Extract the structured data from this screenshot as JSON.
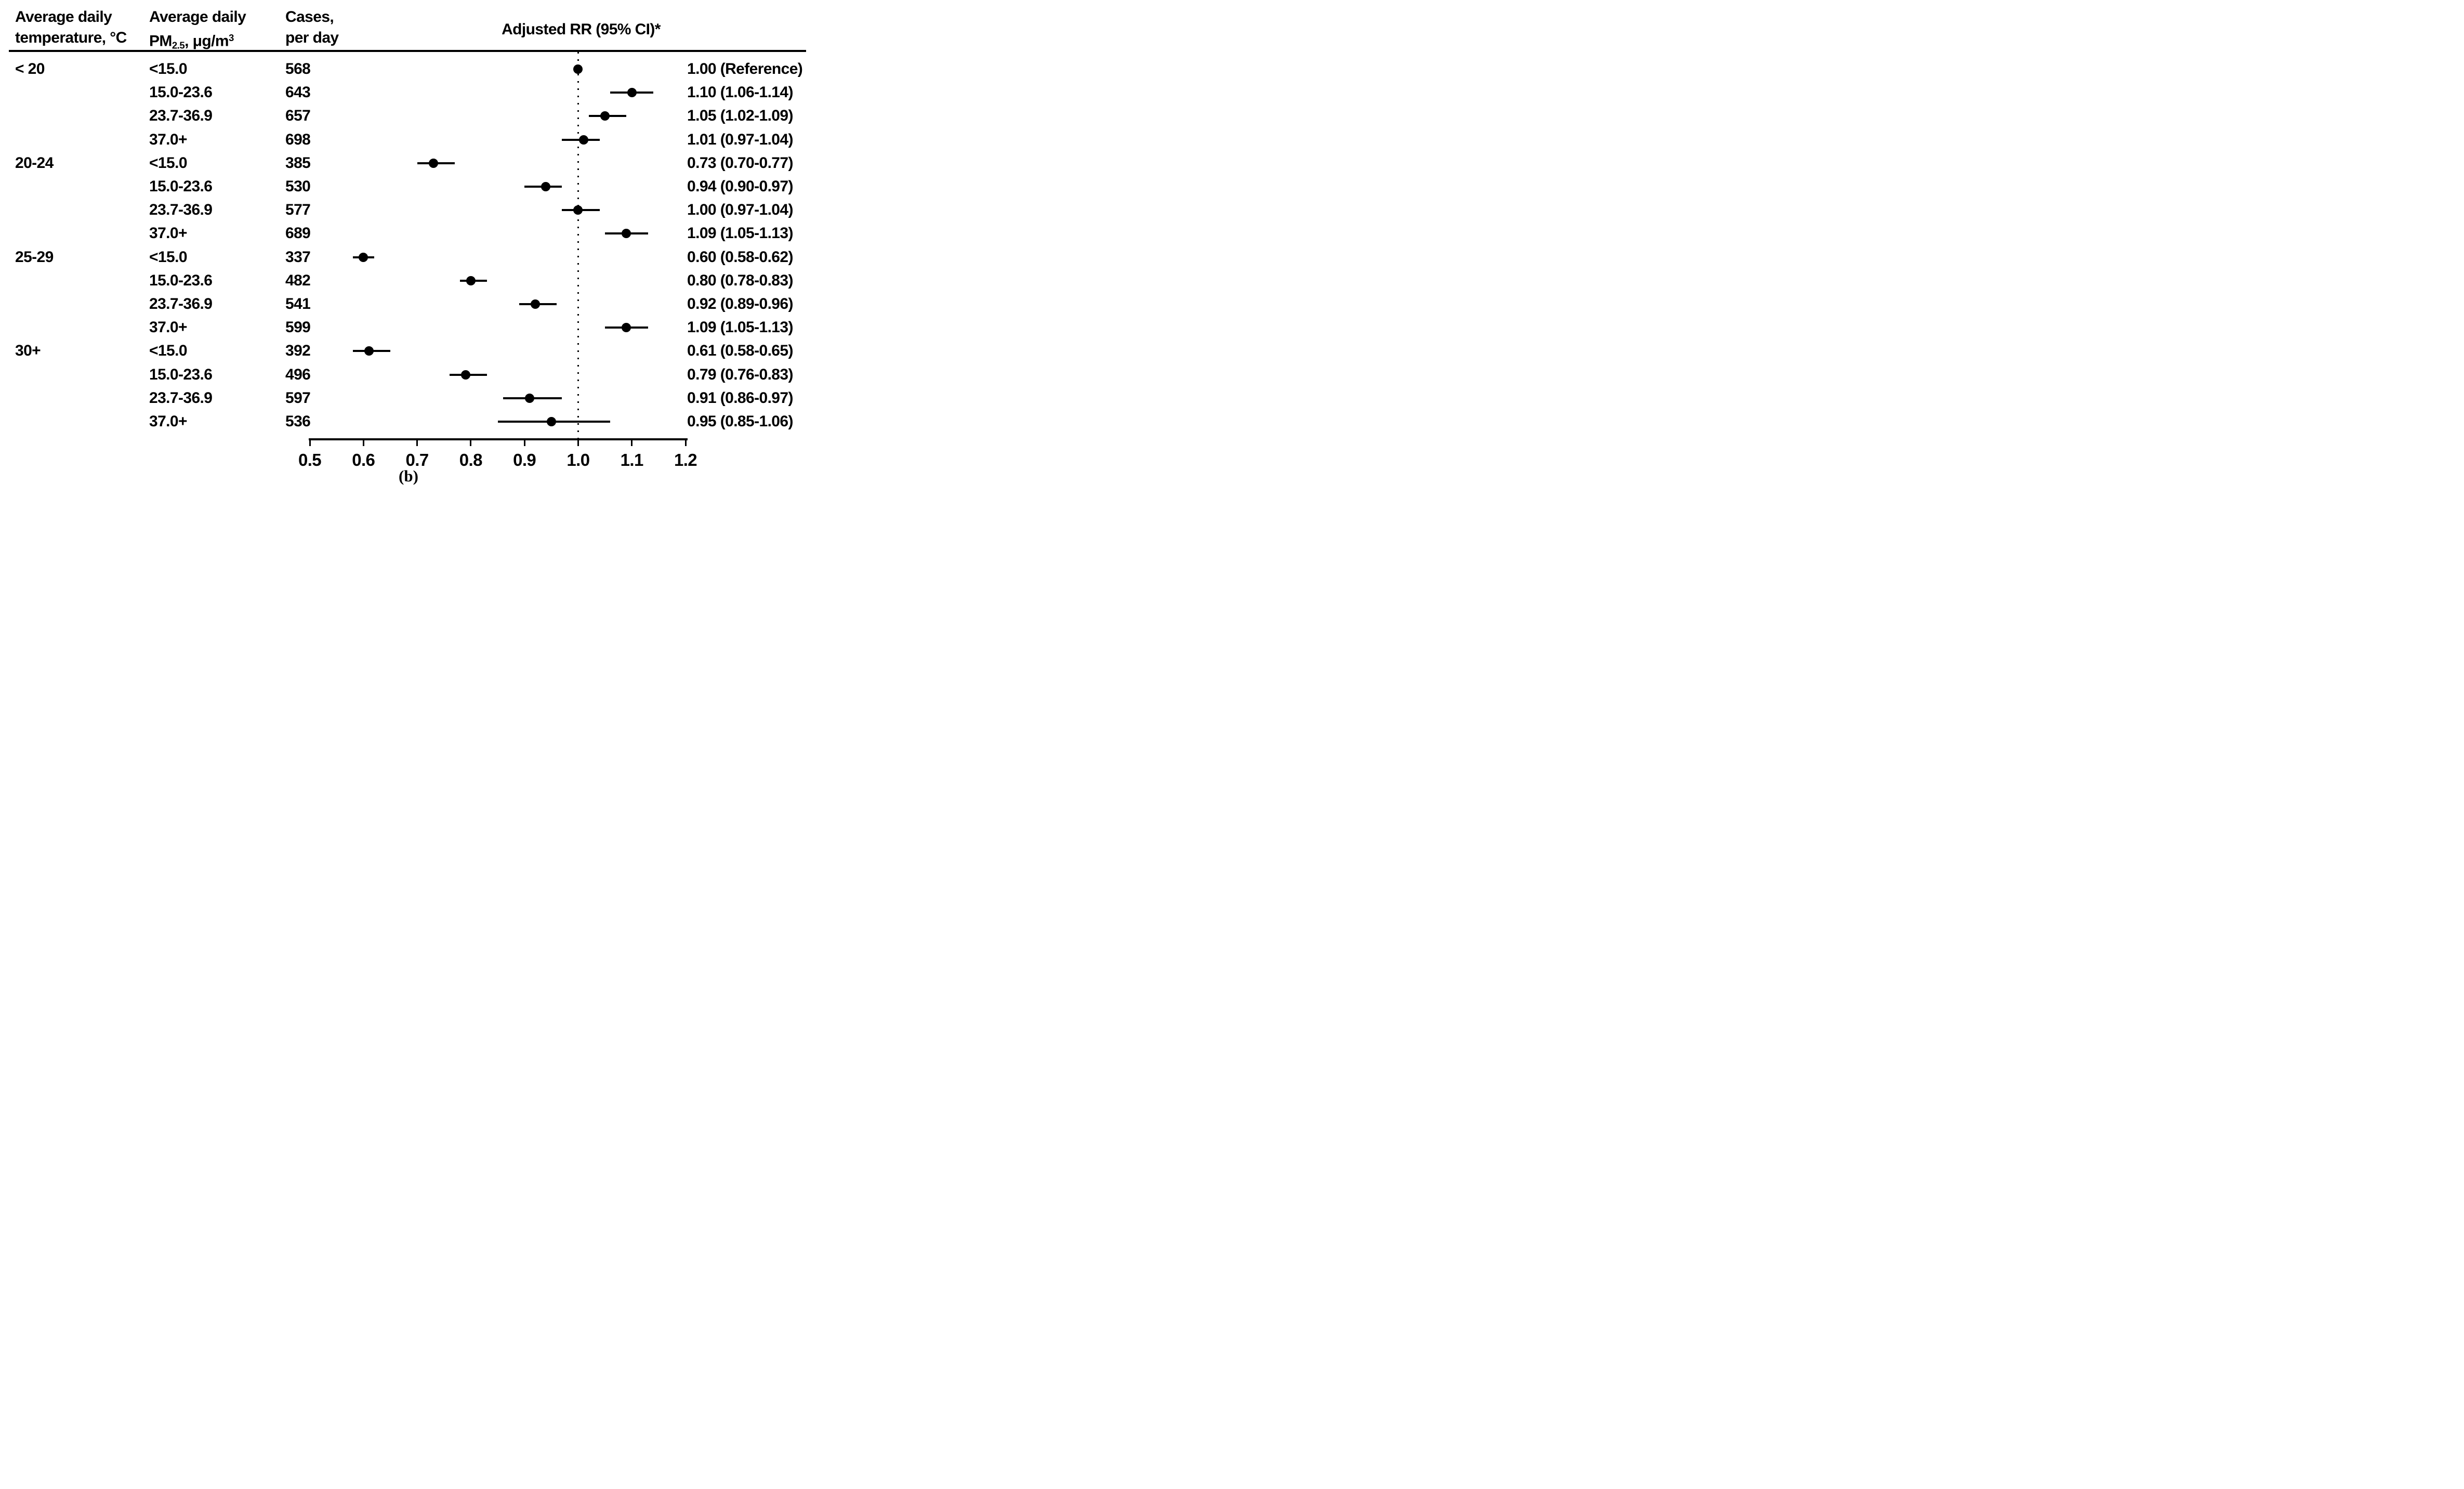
{
  "figure": {
    "header": {
      "col_temp": [
        "Average daily",
        "temperature, °C"
      ],
      "col_pm": {
        "line1": "Average daily",
        "pm": "PM",
        "pm_sub": "2.5",
        "pm_rest": ", μg/m",
        "pm_sup": "3"
      },
      "col_cases": [
        "Cases,",
        "per day"
      ],
      "col_rr": "Adjusted RR (95% CI)*"
    },
    "caption": "(b)",
    "colors": {
      "ink": "#000000",
      "background": "#ffffff"
    }
  },
  "chart_data": {
    "type": "scatter",
    "variant": "forest-plot",
    "title": "Adjusted RR (95% CI)*",
    "xlabel": "",
    "ylabel": "",
    "x_axis": {
      "range": [
        0.5,
        1.2
      ],
      "tick_values": [
        0.5,
        0.6,
        0.7,
        0.8,
        0.9,
        1.0,
        1.1,
        1.2
      ],
      "tick_labels": [
        "0.5",
        "0.6",
        "0.7",
        "0.8",
        "0.9",
        "1.0",
        "1.1",
        "1.2"
      ],
      "reference_line": 1.0,
      "grid": false
    },
    "legend": null,
    "rows": [
      {
        "temp": "< 20",
        "pm": "<15.0",
        "cases": "568",
        "rr": 1.0,
        "lo": null,
        "hi": null,
        "rr_label": "1.00 (Reference)"
      },
      {
        "temp": null,
        "pm": "15.0-23.6",
        "cases": "643",
        "rr": 1.1,
        "lo": 1.06,
        "hi": 1.14,
        "rr_label": "1.10 (1.06-1.14)"
      },
      {
        "temp": null,
        "pm": "23.7-36.9",
        "cases": "657",
        "rr": 1.05,
        "lo": 1.02,
        "hi": 1.09,
        "rr_label": "1.05 (1.02-1.09)"
      },
      {
        "temp": null,
        "pm": "37.0+",
        "cases": "698",
        "rr": 1.01,
        "lo": 0.97,
        "hi": 1.04,
        "rr_label": "1.01 (0.97-1.04)"
      },
      {
        "temp": "20-24",
        "pm": "<15.0",
        "cases": "385",
        "rr": 0.73,
        "lo": 0.7,
        "hi": 0.77,
        "rr_label": "0.73 (0.70-0.77)"
      },
      {
        "temp": null,
        "pm": "15.0-23.6",
        "cases": "530",
        "rr": 0.94,
        "lo": 0.9,
        "hi": 0.97,
        "rr_label": "0.94 (0.90-0.97)"
      },
      {
        "temp": null,
        "pm": "23.7-36.9",
        "cases": "577",
        "rr": 1.0,
        "lo": 0.97,
        "hi": 1.04,
        "rr_label": "1.00 (0.97-1.04)"
      },
      {
        "temp": null,
        "pm": "37.0+",
        "cases": "689",
        "rr": 1.09,
        "lo": 1.05,
        "hi": 1.13,
        "rr_label": "1.09 (1.05-1.13)"
      },
      {
        "temp": "25-29",
        "pm": "<15.0",
        "cases": "337",
        "rr": 0.6,
        "lo": 0.58,
        "hi": 0.62,
        "rr_label": "0.60 (0.58-0.62)"
      },
      {
        "temp": null,
        "pm": "15.0-23.6",
        "cases": "482",
        "rr": 0.8,
        "lo": 0.78,
        "hi": 0.83,
        "rr_label": "0.80 (0.78-0.83)"
      },
      {
        "temp": null,
        "pm": "23.7-36.9",
        "cases": "541",
        "rr": 0.92,
        "lo": 0.89,
        "hi": 0.96,
        "rr_label": "0.92 (0.89-0.96)"
      },
      {
        "temp": null,
        "pm": "37.0+",
        "cases": "599",
        "rr": 1.09,
        "lo": 1.05,
        "hi": 1.13,
        "rr_label": "1.09 (1.05-1.13)"
      },
      {
        "temp": "30+",
        "pm": "<15.0",
        "cases": "392",
        "rr": 0.61,
        "lo": 0.58,
        "hi": 0.65,
        "rr_label": "0.61 (0.58-0.65)"
      },
      {
        "temp": null,
        "pm": "15.0-23.6",
        "cases": "496",
        "rr": 0.79,
        "lo": 0.76,
        "hi": 0.83,
        "rr_label": "0.79 (0.76-0.83)"
      },
      {
        "temp": null,
        "pm": "23.7-36.9",
        "cases": "597",
        "rr": 0.91,
        "lo": 0.86,
        "hi": 0.97,
        "rr_label": "0.91 (0.86-0.97)"
      },
      {
        "temp": null,
        "pm": "37.0+",
        "cases": "536",
        "rr": 0.95,
        "lo": 0.85,
        "hi": 1.06,
        "rr_label": "0.95 (0.85-1.06)"
      }
    ]
  }
}
